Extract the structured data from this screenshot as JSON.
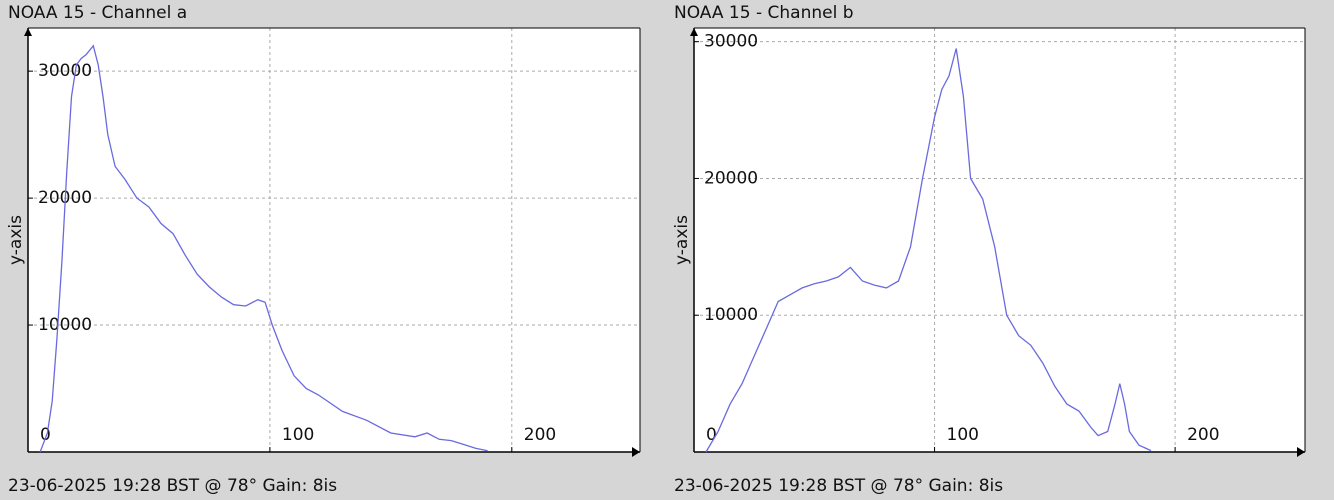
{
  "chart_data": [
    {
      "type": "line",
      "title": "NOAA 15 - Channel a",
      "ylabel": "y-axis",
      "caption": "23-06-2025 19:28 BST @ 78° Gain: 8is",
      "xlim": [
        0,
        253
      ],
      "ylim": [
        0,
        33400
      ],
      "xticks": [
        0,
        100,
        200
      ],
      "yticks": [
        10000,
        20000,
        30000
      ],
      "grid": true,
      "color": "#6a6ae0",
      "x": [
        5,
        8,
        10,
        12,
        14,
        16,
        18,
        20,
        22,
        24,
        27,
        29,
        31,
        33,
        36,
        40,
        45,
        50,
        55,
        60,
        65,
        70,
        75,
        80,
        85,
        90,
        95,
        98,
        101,
        105,
        110,
        115,
        120,
        130,
        140,
        150,
        160,
        165,
        170,
        175,
        180,
        185,
        190
      ],
      "values": [
        0,
        1500,
        4000,
        9000,
        15000,
        22000,
        28000,
        30500,
        31000,
        31300,
        32000,
        30500,
        28000,
        25000,
        22500,
        21500,
        20000,
        19300,
        18000,
        17200,
        15500,
        14000,
        13000,
        12200,
        11600,
        11500,
        12000,
        11800,
        10000,
        8000,
        6000,
        5000,
        4500,
        3200,
        2500,
        1500,
        1200,
        1500,
        1000,
        900,
        600,
        300,
        100
      ]
    },
    {
      "type": "line",
      "title": "NOAA 15 - Channel b",
      "ylabel": "y-axis",
      "caption": "23-06-2025 19:28 BST @ 78° Gain: 8is",
      "xlim": [
        0,
        254
      ],
      "ylim": [
        0,
        31000
      ],
      "xticks": [
        0,
        100,
        200
      ],
      "yticks": [
        10000,
        20000,
        30000
      ],
      "grid": true,
      "color": "#6a6ae0",
      "x": [
        5,
        10,
        15,
        20,
        25,
        30,
        35,
        40,
        45,
        50,
        55,
        60,
        65,
        70,
        75,
        80,
        85,
        90,
        95,
        100,
        103,
        106,
        109,
        112,
        115,
        120,
        125,
        130,
        135,
        140,
        145,
        150,
        155,
        160,
        165,
        168,
        172,
        175,
        177,
        179,
        181,
        185,
        190
      ],
      "values": [
        0,
        1500,
        3500,
        5000,
        7000,
        9000,
        11000,
        11500,
        12000,
        12300,
        12500,
        12800,
        13500,
        12500,
        12200,
        12000,
        12500,
        15000,
        20000,
        24500,
        26500,
        27500,
        29500,
        26000,
        20000,
        18500,
        15000,
        10000,
        8500,
        7800,
        6500,
        4800,
        3500,
        3000,
        1800,
        1200,
        1500,
        3500,
        5000,
        3500,
        1500,
        500,
        100
      ]
    }
  ]
}
